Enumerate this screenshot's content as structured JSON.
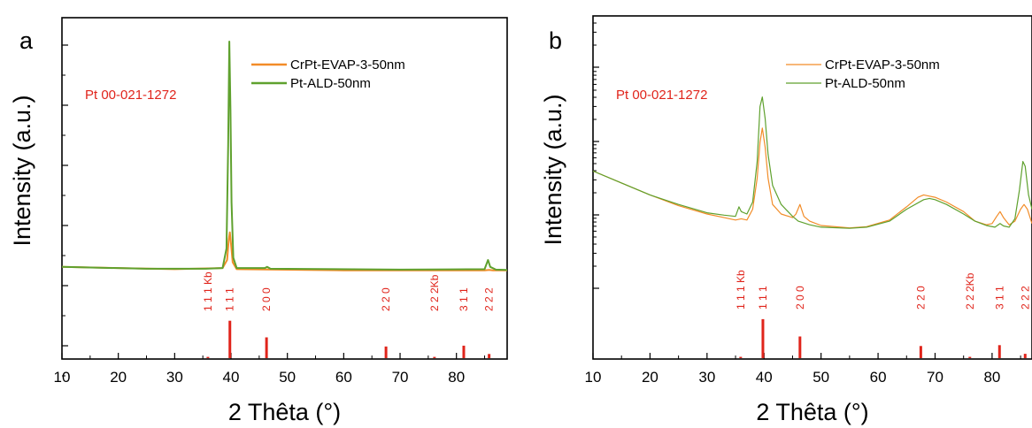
{
  "chart_data": [
    {
      "panel_label": "a",
      "type": "line",
      "xlabel": "2 Thêta (°)",
      "ylabel": "Intensity (a.u.)",
      "xlim": [
        10,
        89
      ],
      "x_ticks": [
        10,
        20,
        30,
        40,
        50,
        60,
        70,
        80
      ],
      "y_scale": "linear",
      "y_tick_labels_shown": false,
      "legend_position": "top-right",
      "reference_label": "Pt 00-021-1272",
      "series": [
        {
          "name": "CrPt-EVAP-3-50nm",
          "color": "#f28c28",
          "points": [
            [
              10,
              0.02
            ],
            [
              30,
              0.01
            ],
            [
              38.5,
              0.015
            ],
            [
              39.3,
              0.05
            ],
            [
              39.6,
              0.14
            ],
            [
              39.8,
              0.17
            ],
            [
              40.0,
              0.12
            ],
            [
              40.3,
              0.04
            ],
            [
              41,
              0.01
            ],
            [
              60,
              0.005
            ],
            [
              85,
              0.005
            ],
            [
              85.8,
              0.007
            ],
            [
              86.5,
              0.005
            ],
            [
              89,
              0.005
            ]
          ]
        },
        {
          "name": "Pt-ALD-50nm",
          "color": "#5fa12e",
          "points": [
            [
              10,
              0.02
            ],
            [
              25,
              0.012
            ],
            [
              35.5,
              0.012
            ],
            [
              38.5,
              0.015
            ],
            [
              39.2,
              0.1
            ],
            [
              39.5,
              0.55
            ],
            [
              39.7,
              1.0
            ],
            [
              39.9,
              0.7
            ],
            [
              40.1,
              0.3
            ],
            [
              40.4,
              0.06
            ],
            [
              41,
              0.015
            ],
            [
              46.0,
              0.015
            ],
            [
              46.4,
              0.02
            ],
            [
              47,
              0.012
            ],
            [
              70,
              0.008
            ],
            [
              85.0,
              0.01
            ],
            [
              85.6,
              0.05
            ],
            [
              86.0,
              0.02
            ],
            [
              87,
              0.008
            ],
            [
              89,
              0.007
            ]
          ]
        }
      ],
      "reference_peaks": [
        {
          "hkl": "1 1 1 Kb",
          "position": 35.9,
          "height": 0.03
        },
        {
          "hkl": "1 1 1",
          "position": 39.8,
          "height": 0.9
        },
        {
          "hkl": "2 0 0",
          "position": 46.3,
          "height": 0.5
        },
        {
          "hkl": "2 2 0",
          "position": 67.5,
          "height": 0.28
        },
        {
          "hkl": "2 2 2Kb",
          "position": 76.1,
          "height": 0.03
        },
        {
          "hkl": "3 1 1",
          "position": 81.3,
          "height": 0.3
        },
        {
          "hkl": "2 2 2",
          "position": 85.8,
          "height": 0.1
        }
      ]
    },
    {
      "panel_label": "b",
      "type": "line",
      "xlabel": "2 Thêta (°)",
      "ylabel": "Intensity (a.u.)",
      "xlim": [
        10,
        87
      ],
      "x_ticks": [
        10,
        20,
        30,
        40,
        50,
        60,
        70,
        80
      ],
      "y_scale": "log",
      "y_tick_labels_shown": false,
      "legend_position": "top-right",
      "reference_label": "Pt 00-021-1272",
      "series": [
        {
          "name": "CrPt-EVAP-3-50nm",
          "color": "#f28c28",
          "points": [
            [
              10,
              0.58
            ],
            [
              15,
              0.53
            ],
            [
              20,
              0.48
            ],
            [
              25,
              0.435
            ],
            [
              30,
              0.4
            ],
            [
              33,
              0.385
            ],
            [
              35,
              0.375
            ],
            [
              36,
              0.38
            ],
            [
              37,
              0.375
            ],
            [
              38,
              0.42
            ],
            [
              38.8,
              0.55
            ],
            [
              39.3,
              0.7
            ],
            [
              39.7,
              0.76
            ],
            [
              40.2,
              0.68
            ],
            [
              40.7,
              0.55
            ],
            [
              41.5,
              0.44
            ],
            [
              43,
              0.4
            ],
            [
              45,
              0.385
            ],
            [
              45.6,
              0.4
            ],
            [
              46.3,
              0.44
            ],
            [
              47,
              0.39
            ],
            [
              48,
              0.37
            ],
            [
              50,
              0.352
            ],
            [
              55,
              0.342
            ],
            [
              58,
              0.347
            ],
            [
              62,
              0.375
            ],
            [
              65,
              0.43
            ],
            [
              67,
              0.47
            ],
            [
              68,
              0.48
            ],
            [
              69,
              0.475
            ],
            [
              70,
              0.47
            ],
            [
              72,
              0.45
            ],
            [
              75,
              0.41
            ],
            [
              77,
              0.37
            ],
            [
              79,
              0.355
            ],
            [
              80,
              0.36
            ],
            [
              80.8,
              0.39
            ],
            [
              81.4,
              0.41
            ],
            [
              82,
              0.385
            ],
            [
              83,
              0.355
            ],
            [
              84,
              0.37
            ],
            [
              85,
              0.42
            ],
            [
              85.6,
              0.44
            ],
            [
              86.2,
              0.42
            ],
            [
              87,
              0.36
            ]
          ]
        },
        {
          "name": "Pt-ALD-50nm",
          "color": "#5fa12e",
          "points": [
            [
              10,
              0.58
            ],
            [
              15,
              0.53
            ],
            [
              20,
              0.48
            ],
            [
              25,
              0.44
            ],
            [
              30,
              0.405
            ],
            [
              33,
              0.395
            ],
            [
              35,
              0.39
            ],
            [
              35.6,
              0.43
            ],
            [
              36,
              0.41
            ],
            [
              37,
              0.4
            ],
            [
              38,
              0.45
            ],
            [
              38.8,
              0.62
            ],
            [
              39.3,
              0.85
            ],
            [
              39.7,
              0.89
            ],
            [
              40.2,
              0.8
            ],
            [
              40.7,
              0.65
            ],
            [
              41.5,
              0.52
            ],
            [
              43,
              0.44
            ],
            [
              45,
              0.39
            ],
            [
              46,
              0.37
            ],
            [
              48,
              0.355
            ],
            [
              50,
              0.345
            ],
            [
              55,
              0.34
            ],
            [
              58,
              0.345
            ],
            [
              62,
              0.37
            ],
            [
              65,
              0.42
            ],
            [
              68,
              0.46
            ],
            [
              69,
              0.465
            ],
            [
              70,
              0.46
            ],
            [
              72,
              0.44
            ],
            [
              75,
              0.4
            ],
            [
              77,
              0.37
            ],
            [
              79,
              0.352
            ],
            [
              80.5,
              0.345
            ],
            [
              81.4,
              0.36
            ],
            [
              82,
              0.35
            ],
            [
              83,
              0.345
            ],
            [
              84,
              0.38
            ],
            [
              84.8,
              0.5
            ],
            [
              85.4,
              0.62
            ],
            [
              85.8,
              0.6
            ],
            [
              86.4,
              0.48
            ],
            [
              87,
              0.42
            ]
          ]
        }
      ],
      "reference_peaks": [
        {
          "hkl": "1 1 1 Kb",
          "position": 35.9,
          "height": 0.03
        },
        {
          "hkl": "1 1 1",
          "position": 39.8,
          "height": 0.9
        },
        {
          "hkl": "2 0 0",
          "position": 46.3,
          "height": 0.5
        },
        {
          "hkl": "2 2 0",
          "position": 67.5,
          "height": 0.28
        },
        {
          "hkl": "2 2 2Kb",
          "position": 76.1,
          "height": 0.03
        },
        {
          "hkl": "3 1 1",
          "position": 81.3,
          "height": 0.3
        },
        {
          "hkl": "2 2 2",
          "position": 85.8,
          "height": 0.1
        }
      ]
    }
  ]
}
